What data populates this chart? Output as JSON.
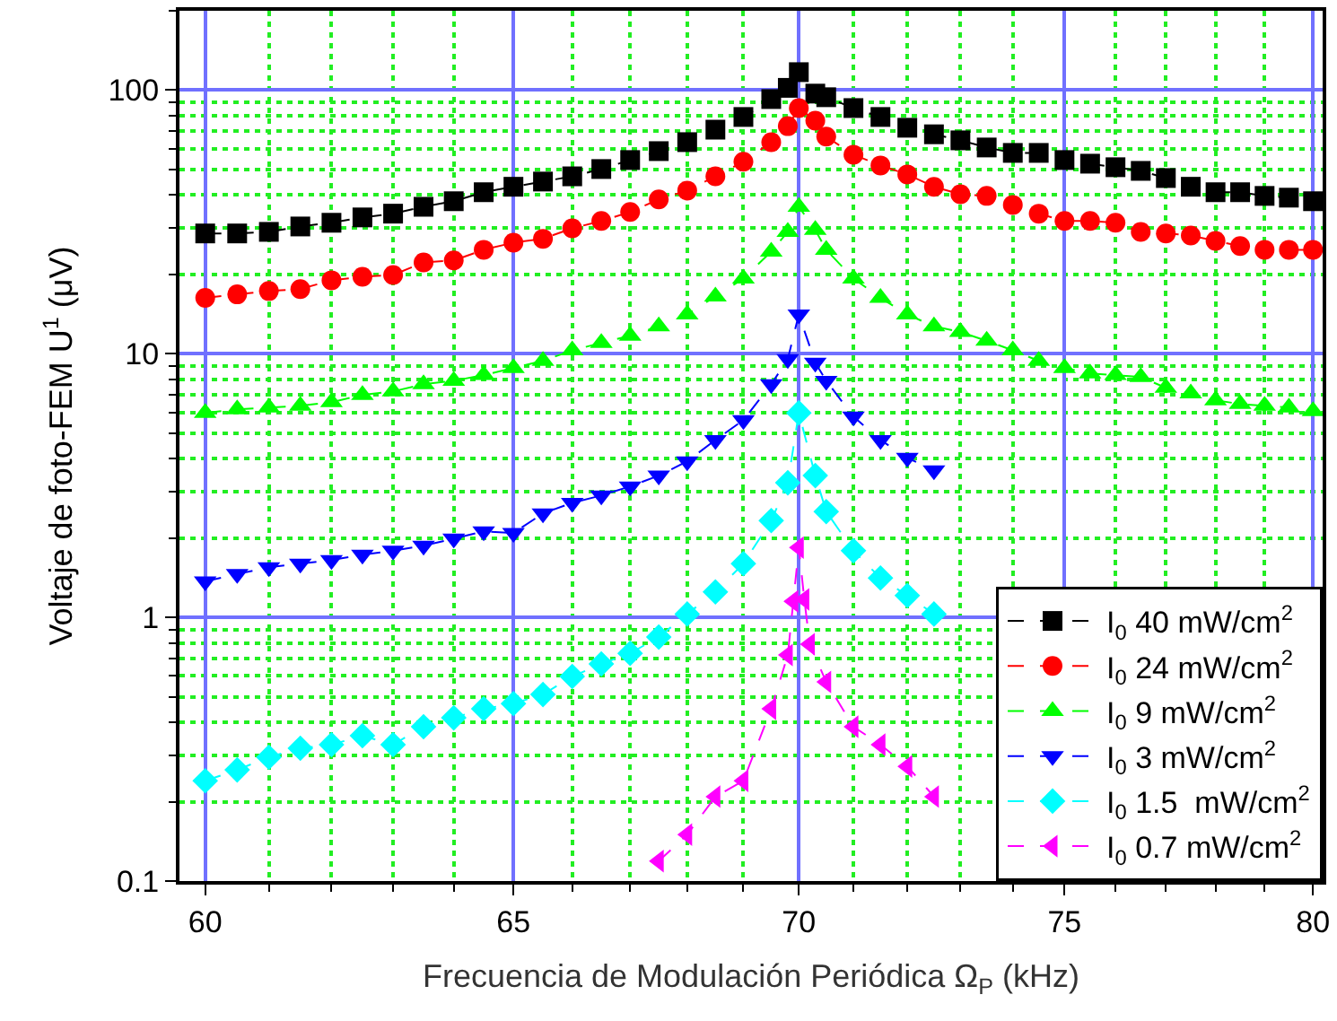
{
  "chart_data": {
    "type": "line",
    "xlabel": "Frecuencia de Modulación Periódica Ω$_{P}$ (kHz)",
    "ylabel": "Voltaje de foto-FEM U$^{1}$ (μV)",
    "x": [
      60,
      60.5,
      61,
      61.5,
      62,
      62.5,
      63,
      63.5,
      64,
      64.5,
      65,
      65.5,
      66,
      66.5,
      67,
      67.5,
      68,
      68.5,
      69,
      69.5,
      69.8,
      70,
      70.3,
      70.5,
      71,
      71.5,
      72,
      72.5,
      73,
      73.5,
      74,
      74.5,
      75,
      75.5,
      76,
      76.5,
      77,
      77.5,
      78,
      78.5,
      79,
      79.5,
      80
    ],
    "log": "xy",
    "xlim": [
      59.6,
      80.2
    ],
    "ylim": [
      0.1,
      200
    ],
    "xticks": [
      60,
      {
        "value": 61,
        "label": null
      },
      {
        "value": 62,
        "label": null
      },
      {
        "value": 63,
        "label": null
      },
      {
        "value": 64,
        "label": null
      },
      65,
      {
        "value": 66,
        "label": null
      },
      {
        "value": 67,
        "label": null
      },
      {
        "value": 68,
        "label": null
      },
      {
        "value": 69,
        "label": null
      },
      70,
      {
        "value": 71,
        "label": null
      },
      {
        "value": 72,
        "label": null
      },
      {
        "value": 73,
        "label": null
      },
      {
        "value": 74,
        "label": null
      },
      75,
      {
        "value": 76,
        "label": null
      },
      {
        "value": 77,
        "label": null
      },
      {
        "value": 78,
        "label": null
      },
      {
        "value": 79,
        "label": null
      },
      80
    ],
    "yticks": [
      0.1,
      {
        "value": 0.2,
        "label": null
      },
      {
        "value": 0.3,
        "label": null
      },
      {
        "value": 0.4,
        "label": null
      },
      {
        "value": 0.5,
        "label": null
      },
      {
        "value": 0.6,
        "label": null
      },
      {
        "value": 0.7,
        "label": null
      },
      {
        "value": 0.8,
        "label": null
      },
      {
        "value": 0.9,
        "label": null
      },
      1,
      {
        "value": 2,
        "label": null
      },
      {
        "value": 3,
        "label": null
      },
      {
        "value": 4,
        "label": null
      },
      {
        "value": 5,
        "label": null
      },
      {
        "value": 6,
        "label": null
      },
      {
        "value": 7,
        "label": null
      },
      {
        "value": 8,
        "label": null
      },
      {
        "value": 9,
        "label": null
      },
      10,
      {
        "value": 20,
        "label": null
      },
      {
        "value": 30,
        "label": null
      },
      {
        "value": 40,
        "label": null
      },
      {
        "value": 50,
        "label": null
      },
      {
        "value": 60,
        "label": null
      },
      {
        "value": 70,
        "label": null
      },
      {
        "value": 80,
        "label": null
      },
      {
        "value": 90,
        "label": null
      },
      100,
      {
        "value": 200,
        "label": null
      }
    ],
    "grid": true,
    "legend": "bottom right",
    "line_style": "dashed",
    "series": [
      {
        "name": "I$_{0}$ 40 mW/cm$^{2}$",
        "color": "#000000",
        "marker": "square",
        "values": [
          28.6,
          28.6,
          29,
          30.4,
          31.4,
          32.9,
          34,
          36.1,
          37.9,
          41,
          43,
          45,
          47.1,
          50.2,
          54.3,
          58.7,
          63.5,
          70.8,
          79.1,
          92.5,
          102,
          117,
          97,
          94,
          85.5,
          79.1,
          72,
          68,
          64.5,
          60.6,
          57.8,
          57.8,
          54.3,
          52.6,
          51,
          49.4,
          46.4,
          43,
          41,
          41,
          39.7,
          39.1,
          37.9
        ]
      },
      {
        "name": "I$_{0}$ 24 mW/cm$^{2}$",
        "color": "#ff0000",
        "marker": "circle",
        "values": [
          16.3,
          16.8,
          17.3,
          17.6,
          19,
          19.6,
          19.9,
          22.2,
          22.6,
          24.8,
          26.4,
          27.3,
          29.9,
          31.9,
          34.5,
          38.5,
          41.6,
          47.1,
          53.5,
          63.5,
          73,
          85.5,
          76.6,
          66.6,
          56.9,
          51.8,
          47.9,
          43,
          40.3,
          39.7,
          36.7,
          34,
          31.9,
          31.9,
          31.4,
          29,
          28.6,
          28.1,
          26.8,
          25.6,
          24.8,
          24.8,
          24.8
        ]
      },
      {
        "name": "I$_{0}$ 9 mW/cm$^{2}$",
        "color": "#00ff00",
        "marker": "triangle",
        "values": [
          5.97,
          6.15,
          6.25,
          6.35,
          6.55,
          6.98,
          7.2,
          7.66,
          7.9,
          8.3,
          8.83,
          9.4,
          10.3,
          11,
          11.7,
          12.7,
          14.1,
          16.5,
          19.3,
          24.4,
          29,
          36.1,
          29.5,
          24.8,
          19.3,
          16.3,
          14.1,
          12.7,
          12.1,
          11.2,
          10.3,
          9.4,
          8.83,
          8.42,
          8.3,
          8.16,
          7.43,
          7.08,
          6.66,
          6.45,
          6.35,
          6.25,
          6.06
        ]
      },
      {
        "name": "I$_{0}$ 3 mW/cm$^{2}$",
        "color": "#0000ff",
        "marker": "triangle-down",
        "values": [
          1.37,
          1.46,
          1.55,
          1.6,
          1.65,
          1.73,
          1.79,
          1.87,
          1.99,
          2.12,
          2.09,
          2.48,
          2.72,
          2.9,
          3.14,
          3.45,
          3.91,
          4.71,
          5.6,
          7.66,
          9.55,
          14.1,
          9.25,
          7.9,
          5.78,
          4.71,
          4.03,
          3.61,
          null,
          null,
          null,
          null,
          null,
          null,
          null,
          null,
          null,
          null,
          null,
          null,
          null,
          null,
          null
        ]
      },
      {
        "name": "I$_{0}$ 1.5  mW/cm$^{2}$",
        "color": "#00ffff",
        "marker": "diamond",
        "values": [
          0.24,
          0.264,
          0.295,
          0.319,
          0.329,
          0.356,
          0.329,
          0.385,
          0.416,
          0.45,
          0.471,
          0.51,
          0.597,
          0.666,
          0.731,
          0.842,
          1.03,
          1.25,
          1.6,
          2.33,
          3.24,
          5.97,
          3.45,
          2.52,
          1.79,
          1.41,
          1.21,
          1.03,
          null,
          null,
          null,
          null,
          null,
          null,
          null,
          null,
          null,
          null,
          null,
          null,
          null,
          null,
          null
        ]
      },
      {
        "name": "I$_{0}$ 0.7 mW/cm$^{2}$",
        "color": "#ff00ff",
        "marker": "triangle-left",
        "x": [
          67.5,
          68,
          68.5,
          69,
          69.5,
          69.8,
          69.9,
          70,
          70.1,
          70.2,
          70.5,
          71,
          71.5,
          72,
          72.5
        ],
        "values": [
          0.119,
          0.15,
          0.209,
          0.24,
          0.45,
          0.72,
          1.15,
          1.84,
          1.17,
          0.791,
          0.569,
          0.385,
          0.329,
          0.272,
          0.209
        ]
      }
    ]
  }
}
